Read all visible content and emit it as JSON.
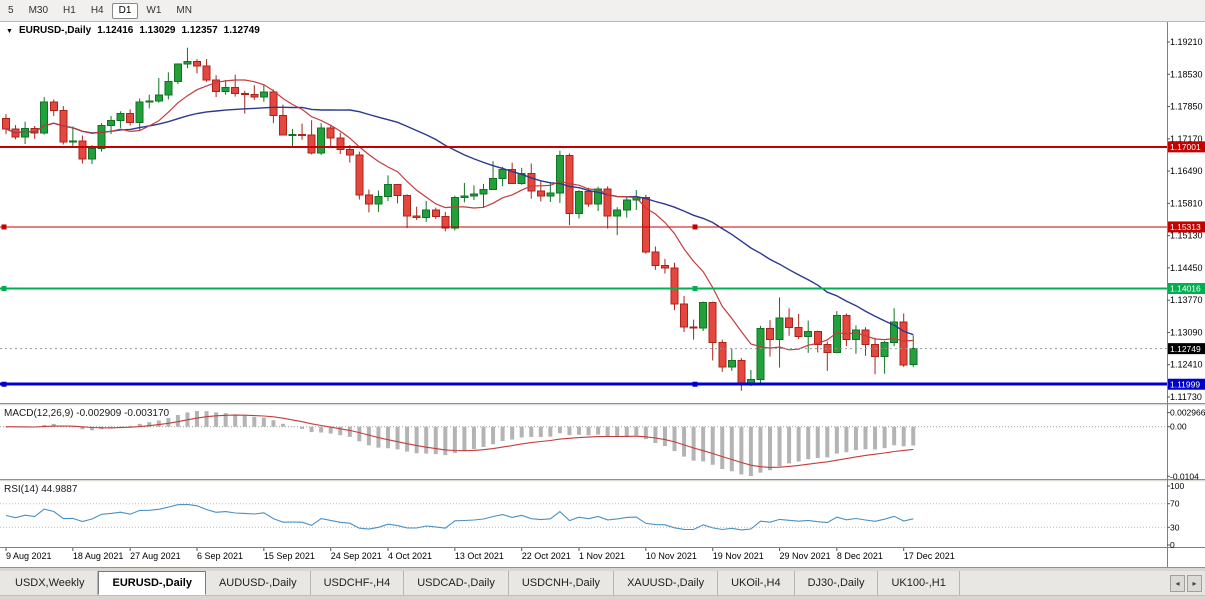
{
  "toolbar": {
    "periods": [
      {
        "label": "5",
        "active": false
      },
      {
        "label": "M30",
        "active": false
      },
      {
        "label": "H1",
        "active": false
      },
      {
        "label": "H4",
        "active": false
      },
      {
        "label": "D1",
        "active": true
      },
      {
        "label": "W1",
        "active": false
      },
      {
        "label": "MN",
        "active": false
      }
    ]
  },
  "icons": {
    "chart_dropdown": "▼",
    "tab_scroll_left": "◂",
    "tab_scroll_right": "▸"
  },
  "chart_header": {
    "symbol": "EURUSD-,Daily",
    "open": "1.12416",
    "high": "1.13029",
    "low": "1.12357",
    "close": "1.12749"
  },
  "tabs": [
    {
      "label": "USDX,Weekly",
      "active": false
    },
    {
      "label": "EURUSD-,Daily",
      "active": true
    },
    {
      "label": "AUDUSD-,Daily",
      "active": false
    },
    {
      "label": "USDCHF-,H4",
      "active": false
    },
    {
      "label": "USDCAD-,Daily",
      "active": false
    },
    {
      "label": "USDCNH-,Daily",
      "active": false
    },
    {
      "label": "XAUUSD-,Daily",
      "active": false
    },
    {
      "label": "UKOil-,H4",
      "active": false
    },
    {
      "label": "DJ30-,Daily",
      "active": false
    },
    {
      "label": "UK100-,H1",
      "active": false
    }
  ],
  "chart_data": {
    "type": "candlestick",
    "symbol": "EURUSD-",
    "timeframe": "Daily",
    "up_color": "#22a13a",
    "up_border": "#117227",
    "down_color": "#e4473d",
    "down_border": "#aa231b",
    "y_tick_labels": [
      "1.19210",
      "1.18530",
      "1.17850",
      "1.17170",
      "1.16490",
      "1.15810",
      "1.15130",
      "1.14450",
      "1.13770",
      "1.13090",
      "1.12410",
      "1.11730"
    ],
    "x_tick_labels": [
      "9 Aug 2021",
      "18 Aug 2021",
      "27 Aug 2021",
      "6 Sep 2021",
      "15 Sep 2021",
      "24 Sep 2021",
      "4 Oct 2021",
      "13 Oct 2021",
      "22 Oct 2021",
      "1 Nov 2021",
      "10 Nov 2021",
      "19 Nov 2021",
      "29 Nov 2021",
      "8 Dec 2021",
      "17 Dec 2021"
    ],
    "y_axis": {
      "min": 1.1167,
      "max": 1.1946
    },
    "ohlc": [
      [
        1.176,
        1.1769,
        1.1727,
        1.1738
      ],
      [
        1.1738,
        1.1746,
        1.1716,
        1.1721
      ],
      [
        1.1721,
        1.1753,
        1.1706,
        1.1739
      ],
      [
        1.1739,
        1.1744,
        1.1717,
        1.1729
      ],
      [
        1.1729,
        1.1805,
        1.1726,
        1.1795
      ],
      [
        1.1795,
        1.18,
        1.1765,
        1.1777
      ],
      [
        1.1777,
        1.1786,
        1.1705,
        1.171
      ],
      [
        1.171,
        1.1743,
        1.1702,
        1.1712
      ],
      [
        1.1712,
        1.1724,
        1.1665,
        1.1675
      ],
      [
        1.1675,
        1.1704,
        1.1664,
        1.1697
      ],
      [
        1.1697,
        1.175,
        1.169,
        1.1745
      ],
      [
        1.1745,
        1.1765,
        1.1727,
        1.1756
      ],
      [
        1.1756,
        1.1775,
        1.174,
        1.177
      ],
      [
        1.177,
        1.1779,
        1.1745,
        1.1751
      ],
      [
        1.1751,
        1.1802,
        1.1735,
        1.1795
      ],
      [
        1.1795,
        1.181,
        1.1781,
        1.1797
      ],
      [
        1.1797,
        1.1845,
        1.1793,
        1.1809
      ],
      [
        1.1809,
        1.1857,
        1.18,
        1.1838
      ],
      [
        1.1838,
        1.1876,
        1.1832,
        1.1875
      ],
      [
        1.1875,
        1.1909,
        1.1866,
        1.188
      ],
      [
        1.188,
        1.1885,
        1.1855,
        1.187
      ],
      [
        1.187,
        1.1885,
        1.1837,
        1.1841
      ],
      [
        1.1841,
        1.1851,
        1.1805,
        1.1817
      ],
      [
        1.1817,
        1.1841,
        1.181,
        1.1825
      ],
      [
        1.1825,
        1.1852,
        1.1806,
        1.1813
      ],
      [
        1.1813,
        1.1818,
        1.177,
        1.181
      ],
      [
        1.181,
        1.183,
        1.1799,
        1.1805
      ],
      [
        1.1805,
        1.1832,
        1.1795,
        1.1816
      ],
      [
        1.1816,
        1.1821,
        1.175,
        1.1766
      ],
      [
        1.1766,
        1.1789,
        1.1724,
        1.1725
      ],
      [
        1.1725,
        1.1738,
        1.17,
        1.1726
      ],
      [
        1.1726,
        1.1749,
        1.1715,
        1.1725
      ],
      [
        1.1725,
        1.1756,
        1.1684,
        1.1687
      ],
      [
        1.1687,
        1.175,
        1.1683,
        1.174
      ],
      [
        1.174,
        1.1747,
        1.1701,
        1.1719
      ],
      [
        1.1719,
        1.173,
        1.1685,
        1.1695
      ],
      [
        1.1695,
        1.1704,
        1.1667,
        1.1683
      ],
      [
        1.1683,
        1.169,
        1.1589,
        1.1599
      ],
      [
        1.1599,
        1.161,
        1.1562,
        1.158
      ],
      [
        1.158,
        1.1608,
        1.1563,
        1.1595
      ],
      [
        1.1595,
        1.164,
        1.1586,
        1.1621
      ],
      [
        1.1621,
        1.1622,
        1.1581,
        1.1598
      ],
      [
        1.1598,
        1.16,
        1.1529,
        1.1554
      ],
      [
        1.1554,
        1.1574,
        1.1546,
        1.1551
      ],
      [
        1.1551,
        1.1586,
        1.1542,
        1.1567
      ],
      [
        1.1567,
        1.1572,
        1.1548,
        1.1553
      ],
      [
        1.1553,
        1.1563,
        1.1522,
        1.1529
      ],
      [
        1.1529,
        1.1597,
        1.1524,
        1.1593
      ],
      [
        1.1593,
        1.1624,
        1.1583,
        1.1596
      ],
      [
        1.1596,
        1.1619,
        1.1588,
        1.1601
      ],
      [
        1.1601,
        1.1622,
        1.1572,
        1.161
      ],
      [
        1.161,
        1.167,
        1.1609,
        1.1633
      ],
      [
        1.1633,
        1.1658,
        1.1617,
        1.1652
      ],
      [
        1.1652,
        1.1667,
        1.1622,
        1.1623
      ],
      [
        1.1623,
        1.1656,
        1.162,
        1.1644
      ],
      [
        1.1644,
        1.1665,
        1.1591,
        1.1607
      ],
      [
        1.1607,
        1.1627,
        1.1585,
        1.1596
      ],
      [
        1.1596,
        1.1626,
        1.1584,
        1.1603
      ],
      [
        1.1603,
        1.1692,
        1.1582,
        1.1682
      ],
      [
        1.1682,
        1.1686,
        1.1535,
        1.156
      ],
      [
        1.156,
        1.1609,
        1.1549,
        1.1606
      ],
      [
        1.1606,
        1.1614,
        1.1574,
        1.158
      ],
      [
        1.158,
        1.1616,
        1.1565,
        1.1611
      ],
      [
        1.1611,
        1.1617,
        1.1528,
        1.1554
      ],
      [
        1.1554,
        1.1573,
        1.1514,
        1.1567
      ],
      [
        1.1567,
        1.1595,
        1.1551,
        1.1588
      ],
      [
        1.1588,
        1.1609,
        1.1567,
        1.1593
      ],
      [
        1.1593,
        1.1599,
        1.1475,
        1.1478
      ],
      [
        1.1478,
        1.149,
        1.1441,
        1.145
      ],
      [
        1.145,
        1.1464,
        1.1433,
        1.1445
      ],
      [
        1.1445,
        1.1456,
        1.1356,
        1.1369
      ],
      [
        1.1369,
        1.1386,
        1.131,
        1.132
      ],
      [
        1.132,
        1.1336,
        1.1294,
        1.1318
      ],
      [
        1.1318,
        1.1374,
        1.1312,
        1.1372
      ],
      [
        1.1372,
        1.1374,
        1.125,
        1.1288
      ],
      [
        1.1288,
        1.1294,
        1.1226,
        1.1236
      ],
      [
        1.1236,
        1.1275,
        1.1228,
        1.125
      ],
      [
        1.125,
        1.1255,
        1.1186,
        1.12
      ],
      [
        1.12,
        1.123,
        1.1196,
        1.121
      ],
      [
        1.121,
        1.1323,
        1.1203,
        1.1317
      ],
      [
        1.1317,
        1.1335,
        1.1258,
        1.1294
      ],
      [
        1.1294,
        1.1383,
        1.1235,
        1.1339
      ],
      [
        1.1339,
        1.136,
        1.1302,
        1.1319
      ],
      [
        1.1319,
        1.1348,
        1.1295,
        1.13
      ],
      [
        1.13,
        1.1334,
        1.1266,
        1.1311
      ],
      [
        1.1311,
        1.1313,
        1.1267,
        1.1284
      ],
      [
        1.1284,
        1.129,
        1.1228,
        1.1267
      ],
      [
        1.1267,
        1.1354,
        1.1265,
        1.1345
      ],
      [
        1.1345,
        1.1349,
        1.128,
        1.1294
      ],
      [
        1.1294,
        1.1324,
        1.1264,
        1.1314
      ],
      [
        1.1314,
        1.132,
        1.126,
        1.1284
      ],
      [
        1.1284,
        1.1298,
        1.1221,
        1.1258
      ],
      [
        1.1258,
        1.1291,
        1.1222,
        1.1288
      ],
      [
        1.1288,
        1.136,
        1.128,
        1.1331
      ],
      [
        1.1331,
        1.1349,
        1.1236,
        1.124
      ],
      [
        1.12416,
        1.13029,
        1.12357,
        1.12749
      ]
    ],
    "moving_averages": [
      {
        "name": "ma-slow",
        "type": "sma",
        "period": 28,
        "color": "#2b3990"
      },
      {
        "name": "ma-fast",
        "type": "sma",
        "period": 9,
        "color": "#c43c3c"
      }
    ],
    "hlines": [
      {
        "price": 1.17001,
        "label": "1.17001",
        "color": "#c40000",
        "width": 2,
        "handles": false
      },
      {
        "price": 1.15313,
        "label": "1.15313",
        "color": "#c40000",
        "width": 1,
        "handles": true
      },
      {
        "price": 1.14016,
        "label": "1.14016",
        "color": "#00b050",
        "width": 2,
        "handles": true
      },
      {
        "price": 1.11999,
        "label": "1.11999",
        "color": "#0000cc",
        "width": 3,
        "handles": true
      }
    ],
    "current_price": {
      "value": 1.12749,
      "label": "1.12749",
      "badge_color": "#000000"
    },
    "macd": {
      "title": "MACD(12,26,9) -0.002909 -0.003170",
      "params": [
        12,
        26,
        9
      ],
      "main_value": "-0.002909",
      "signal_value": "-0.003170",
      "axis_labels": [
        {
          "text": "0.002966",
          "value": 0.002966
        },
        {
          "text": "0.00",
          "value": 0
        },
        {
          "text": "-0.0104",
          "value": -0.0104
        }
      ],
      "histogram_color": "#b4b4b4",
      "signal_color": "#c43c3c"
    },
    "rsi": {
      "title": "RSI(14) 44.9887",
      "period": 14,
      "value": "44.9887",
      "axis_labels": [
        {
          "text": "100",
          "value": 100
        },
        {
          "text": "70",
          "value": 70
        },
        {
          "text": "30",
          "value": 30
        },
        {
          "text": "0",
          "value": 0
        }
      ],
      "levels": [
        70,
        30
      ],
      "line_color": "#4a90c2"
    }
  }
}
